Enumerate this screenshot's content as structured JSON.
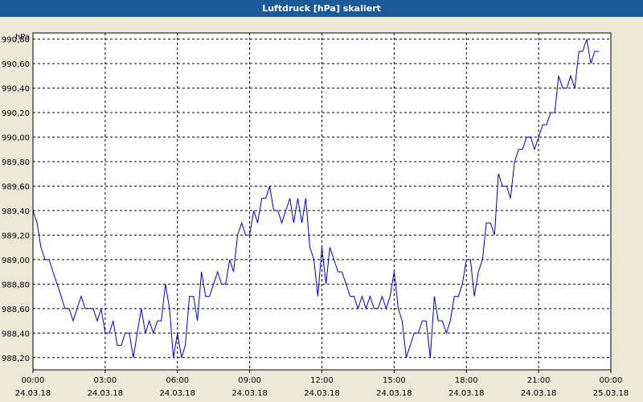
{
  "window": {
    "title": "Luftdruck [hPa] skaliert"
  },
  "chart_data": {
    "type": "line",
    "title": "Luftdruck [hPa] skaliert",
    "ylabel": "hPa",
    "xlabel": "",
    "ylim": [
      988.1,
      990.85
    ],
    "xlim": [
      "24.03.18 00:00",
      "25.03.18 00:00"
    ],
    "grid": true,
    "line_color": "#0000cc",
    "y_ticks": [
      {
        "value": 988.2,
        "label": "988,20"
      },
      {
        "value": 988.4,
        "label": "988,40"
      },
      {
        "value": 988.6,
        "label": "988,60"
      },
      {
        "value": 988.8,
        "label": "988,80"
      },
      {
        "value": 989.0,
        "label": "989,00"
      },
      {
        "value": 989.2,
        "label": "989,20"
      },
      {
        "value": 989.4,
        "label": "989,40"
      },
      {
        "value": 989.6,
        "label": "989,60"
      },
      {
        "value": 989.8,
        "label": "989,80"
      },
      {
        "value": 990.0,
        "label": "990,00"
      },
      {
        "value": 990.2,
        "label": "990,20"
      },
      {
        "value": 990.4,
        "label": "990,40"
      },
      {
        "value": 990.6,
        "label": "990,60"
      },
      {
        "value": 990.8,
        "label": "990,80"
      }
    ],
    "x_ticks": [
      {
        "time": "00:00",
        "date": "24.03.18"
      },
      {
        "time": "03:00",
        "date": "24.03.18"
      },
      {
        "time": "06:00",
        "date": "24.03.18"
      },
      {
        "time": "09:00",
        "date": "24.03.18"
      },
      {
        "time": "12:00",
        "date": "24.03.18"
      },
      {
        "time": "15:00",
        "date": "24.03.18"
      },
      {
        "time": "18:00",
        "date": "24.03.18"
      },
      {
        "time": "21:00",
        "date": "24.03.18"
      },
      {
        "time": "00:00",
        "date": "25.03.18"
      }
    ],
    "x_hours": [
      0,
      0.17,
      0.33,
      0.5,
      0.67,
      0.83,
      1,
      1.17,
      1.33,
      1.5,
      1.67,
      1.83,
      2,
      2.17,
      2.33,
      2.5,
      2.67,
      2.83,
      3,
      3.17,
      3.33,
      3.5,
      3.67,
      3.83,
      4,
      4.17,
      4.33,
      4.5,
      4.67,
      4.83,
      5,
      5.17,
      5.33,
      5.5,
      5.67,
      5.83,
      6,
      6.17,
      6.33,
      6.5,
      6.67,
      6.83,
      7,
      7.17,
      7.33,
      7.5,
      7.67,
      7.83,
      8,
      8.17,
      8.33,
      8.5,
      8.67,
      8.83,
      9,
      9.17,
      9.33,
      9.5,
      9.67,
      9.83,
      10,
      10.17,
      10.33,
      10.5,
      10.67,
      10.83,
      11,
      11.17,
      11.33,
      11.5,
      11.67,
      11.83,
      12,
      12.17,
      12.33,
      12.5,
      12.67,
      12.83,
      13,
      13.17,
      13.33,
      13.5,
      13.67,
      13.83,
      14,
      14.17,
      14.33,
      14.5,
      14.67,
      14.83,
      15,
      15.17,
      15.33,
      15.5,
      15.67,
      15.83,
      16,
      16.17,
      16.33,
      16.5,
      16.67,
      16.83,
      17,
      17.17,
      17.33,
      17.5,
      17.67,
      17.83,
      18,
      18.17,
      18.33,
      18.5,
      18.67,
      18.83,
      19,
      19.17,
      19.33,
      19.5,
      19.67,
      19.83,
      20,
      20.17,
      20.33,
      20.5,
      20.67,
      20.83,
      21,
      21.17,
      21.33,
      21.5,
      21.67,
      21.83,
      22,
      22.17,
      22.33,
      22.5,
      22.67,
      22.83,
      23,
      23.17,
      23.33,
      23.5,
      23.67,
      23.83
    ],
    "series": [
      {
        "values": [
          989.4,
          989.3,
          989.1,
          989.0,
          989.0,
          988.9,
          988.8,
          988.7,
          988.6,
          988.6,
          988.5,
          988.6,
          988.7,
          988.6,
          988.6,
          988.6,
          988.5,
          988.6,
          988.4,
          988.4,
          988.5,
          988.3,
          988.3,
          988.4,
          988.4,
          988.2,
          988.4,
          988.6,
          988.4,
          988.5,
          988.4,
          988.5,
          988.5,
          988.8,
          988.6,
          988.2,
          988.4,
          988.2,
          988.3,
          988.7,
          988.7,
          988.5,
          988.9,
          988.7,
          988.7,
          988.8,
          988.9,
          988.8,
          988.8,
          989.0,
          988.9,
          989.2,
          989.3,
          989.2,
          989.2,
          989.4,
          989.3,
          989.5,
          989.5,
          989.6,
          989.4,
          989.4,
          989.3,
          989.4,
          989.5,
          989.3,
          989.5,
          989.3,
          989.5,
          989.1,
          989.0,
          988.7,
          989.1,
          988.8,
          989.1,
          989.0,
          988.9,
          988.9,
          988.8,
          988.7,
          988.7,
          988.6,
          988.7,
          988.6,
          988.7,
          988.6,
          988.6,
          988.7,
          988.6,
          988.7,
          988.9,
          988.6,
          988.5,
          988.2,
          988.3,
          988.4,
          988.4,
          988.5,
          988.5,
          988.2,
          988.7,
          988.5,
          988.5,
          988.4,
          988.5,
          988.7,
          988.7,
          988.8,
          989.0,
          989.0,
          988.7,
          988.9,
          989.0,
          989.3,
          989.3,
          989.2,
          989.7,
          989.6,
          989.6,
          989.5,
          989.8,
          989.9,
          989.9,
          990.0,
          990.0,
          989.9,
          990.0,
          990.1,
          990.1,
          990.2,
          990.2,
          990.5,
          990.4,
          990.4,
          990.5,
          990.4,
          990.7,
          990.7,
          990.8,
          990.6,
          990.7,
          990.7
        ]
      }
    ]
  }
}
